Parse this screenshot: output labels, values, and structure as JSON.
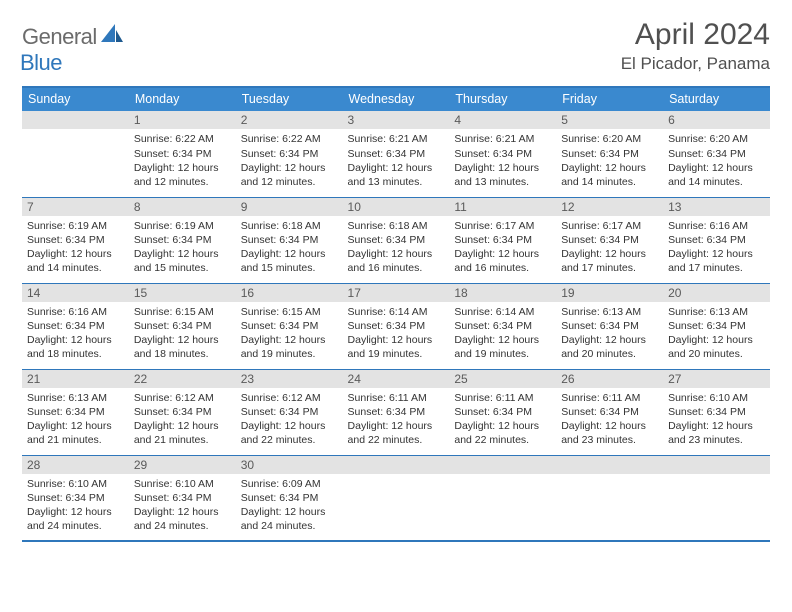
{
  "brand": {
    "general": "General",
    "blue": "Blue"
  },
  "title": "April 2024",
  "location": "El Picador, Panama",
  "dow": [
    "Sunday",
    "Monday",
    "Tuesday",
    "Wednesday",
    "Thursday",
    "Friday",
    "Saturday"
  ],
  "colors": {
    "header_bg": "#3a89cf",
    "border": "#2f77bb",
    "daynum_bg": "#e3e3e3",
    "text": "#333333"
  },
  "weeks": [
    [
      {
        "n": "",
        "l1": "",
        "l2": "",
        "l3": "",
        "l4": ""
      },
      {
        "n": "1",
        "l1": "Sunrise: 6:22 AM",
        "l2": "Sunset: 6:34 PM",
        "l3": "Daylight: 12 hours",
        "l4": "and 12 minutes."
      },
      {
        "n": "2",
        "l1": "Sunrise: 6:22 AM",
        "l2": "Sunset: 6:34 PM",
        "l3": "Daylight: 12 hours",
        "l4": "and 12 minutes."
      },
      {
        "n": "3",
        "l1": "Sunrise: 6:21 AM",
        "l2": "Sunset: 6:34 PM",
        "l3": "Daylight: 12 hours",
        "l4": "and 13 minutes."
      },
      {
        "n": "4",
        "l1": "Sunrise: 6:21 AM",
        "l2": "Sunset: 6:34 PM",
        "l3": "Daylight: 12 hours",
        "l4": "and 13 minutes."
      },
      {
        "n": "5",
        "l1": "Sunrise: 6:20 AM",
        "l2": "Sunset: 6:34 PM",
        "l3": "Daylight: 12 hours",
        "l4": "and 14 minutes."
      },
      {
        "n": "6",
        "l1": "Sunrise: 6:20 AM",
        "l2": "Sunset: 6:34 PM",
        "l3": "Daylight: 12 hours",
        "l4": "and 14 minutes."
      }
    ],
    [
      {
        "n": "7",
        "l1": "Sunrise: 6:19 AM",
        "l2": "Sunset: 6:34 PM",
        "l3": "Daylight: 12 hours",
        "l4": "and 14 minutes."
      },
      {
        "n": "8",
        "l1": "Sunrise: 6:19 AM",
        "l2": "Sunset: 6:34 PM",
        "l3": "Daylight: 12 hours",
        "l4": "and 15 minutes."
      },
      {
        "n": "9",
        "l1": "Sunrise: 6:18 AM",
        "l2": "Sunset: 6:34 PM",
        "l3": "Daylight: 12 hours",
        "l4": "and 15 minutes."
      },
      {
        "n": "10",
        "l1": "Sunrise: 6:18 AM",
        "l2": "Sunset: 6:34 PM",
        "l3": "Daylight: 12 hours",
        "l4": "and 16 minutes."
      },
      {
        "n": "11",
        "l1": "Sunrise: 6:17 AM",
        "l2": "Sunset: 6:34 PM",
        "l3": "Daylight: 12 hours",
        "l4": "and 16 minutes."
      },
      {
        "n": "12",
        "l1": "Sunrise: 6:17 AM",
        "l2": "Sunset: 6:34 PM",
        "l3": "Daylight: 12 hours",
        "l4": "and 17 minutes."
      },
      {
        "n": "13",
        "l1": "Sunrise: 6:16 AM",
        "l2": "Sunset: 6:34 PM",
        "l3": "Daylight: 12 hours",
        "l4": "and 17 minutes."
      }
    ],
    [
      {
        "n": "14",
        "l1": "Sunrise: 6:16 AM",
        "l2": "Sunset: 6:34 PM",
        "l3": "Daylight: 12 hours",
        "l4": "and 18 minutes."
      },
      {
        "n": "15",
        "l1": "Sunrise: 6:15 AM",
        "l2": "Sunset: 6:34 PM",
        "l3": "Daylight: 12 hours",
        "l4": "and 18 minutes."
      },
      {
        "n": "16",
        "l1": "Sunrise: 6:15 AM",
        "l2": "Sunset: 6:34 PM",
        "l3": "Daylight: 12 hours",
        "l4": "and 19 minutes."
      },
      {
        "n": "17",
        "l1": "Sunrise: 6:14 AM",
        "l2": "Sunset: 6:34 PM",
        "l3": "Daylight: 12 hours",
        "l4": "and 19 minutes."
      },
      {
        "n": "18",
        "l1": "Sunrise: 6:14 AM",
        "l2": "Sunset: 6:34 PM",
        "l3": "Daylight: 12 hours",
        "l4": "and 19 minutes."
      },
      {
        "n": "19",
        "l1": "Sunrise: 6:13 AM",
        "l2": "Sunset: 6:34 PM",
        "l3": "Daylight: 12 hours",
        "l4": "and 20 minutes."
      },
      {
        "n": "20",
        "l1": "Sunrise: 6:13 AM",
        "l2": "Sunset: 6:34 PM",
        "l3": "Daylight: 12 hours",
        "l4": "and 20 minutes."
      }
    ],
    [
      {
        "n": "21",
        "l1": "Sunrise: 6:13 AM",
        "l2": "Sunset: 6:34 PM",
        "l3": "Daylight: 12 hours",
        "l4": "and 21 minutes."
      },
      {
        "n": "22",
        "l1": "Sunrise: 6:12 AM",
        "l2": "Sunset: 6:34 PM",
        "l3": "Daylight: 12 hours",
        "l4": "and 21 minutes."
      },
      {
        "n": "23",
        "l1": "Sunrise: 6:12 AM",
        "l2": "Sunset: 6:34 PM",
        "l3": "Daylight: 12 hours",
        "l4": "and 22 minutes."
      },
      {
        "n": "24",
        "l1": "Sunrise: 6:11 AM",
        "l2": "Sunset: 6:34 PM",
        "l3": "Daylight: 12 hours",
        "l4": "and 22 minutes."
      },
      {
        "n": "25",
        "l1": "Sunrise: 6:11 AM",
        "l2": "Sunset: 6:34 PM",
        "l3": "Daylight: 12 hours",
        "l4": "and 22 minutes."
      },
      {
        "n": "26",
        "l1": "Sunrise: 6:11 AM",
        "l2": "Sunset: 6:34 PM",
        "l3": "Daylight: 12 hours",
        "l4": "and 23 minutes."
      },
      {
        "n": "27",
        "l1": "Sunrise: 6:10 AM",
        "l2": "Sunset: 6:34 PM",
        "l3": "Daylight: 12 hours",
        "l4": "and 23 minutes."
      }
    ],
    [
      {
        "n": "28",
        "l1": "Sunrise: 6:10 AM",
        "l2": "Sunset: 6:34 PM",
        "l3": "Daylight: 12 hours",
        "l4": "and 24 minutes."
      },
      {
        "n": "29",
        "l1": "Sunrise: 6:10 AM",
        "l2": "Sunset: 6:34 PM",
        "l3": "Daylight: 12 hours",
        "l4": "and 24 minutes."
      },
      {
        "n": "30",
        "l1": "Sunrise: 6:09 AM",
        "l2": "Sunset: 6:34 PM",
        "l3": "Daylight: 12 hours",
        "l4": "and 24 minutes."
      },
      {
        "n": "",
        "l1": "",
        "l2": "",
        "l3": "",
        "l4": ""
      },
      {
        "n": "",
        "l1": "",
        "l2": "",
        "l3": "",
        "l4": ""
      },
      {
        "n": "",
        "l1": "",
        "l2": "",
        "l3": "",
        "l4": ""
      },
      {
        "n": "",
        "l1": "",
        "l2": "",
        "l3": "",
        "l4": ""
      }
    ]
  ]
}
